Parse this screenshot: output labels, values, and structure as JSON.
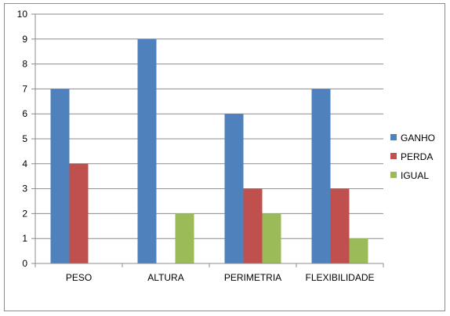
{
  "chart_data": {
    "type": "bar",
    "categories": [
      "PESO",
      "ALTURA",
      "PERIMETRIA",
      "FLEXIBILIDADE"
    ],
    "series": [
      {
        "name": "GANHO",
        "values": [
          7,
          9,
          6,
          7
        ],
        "color": "#4F81BD"
      },
      {
        "name": "PERDA",
        "values": [
          4,
          0,
          3,
          3
        ],
        "color": "#C0504D"
      },
      {
        "name": "IGUAL",
        "values": [
          0,
          2,
          2,
          1
        ],
        "color": "#9BBB59"
      }
    ],
    "ylim": [
      0,
      10
    ],
    "yticks": [
      "0",
      "1",
      "2",
      "3",
      "4",
      "5",
      "6",
      "7",
      "8",
      "9",
      "10"
    ],
    "grid": true,
    "legend": "right"
  }
}
